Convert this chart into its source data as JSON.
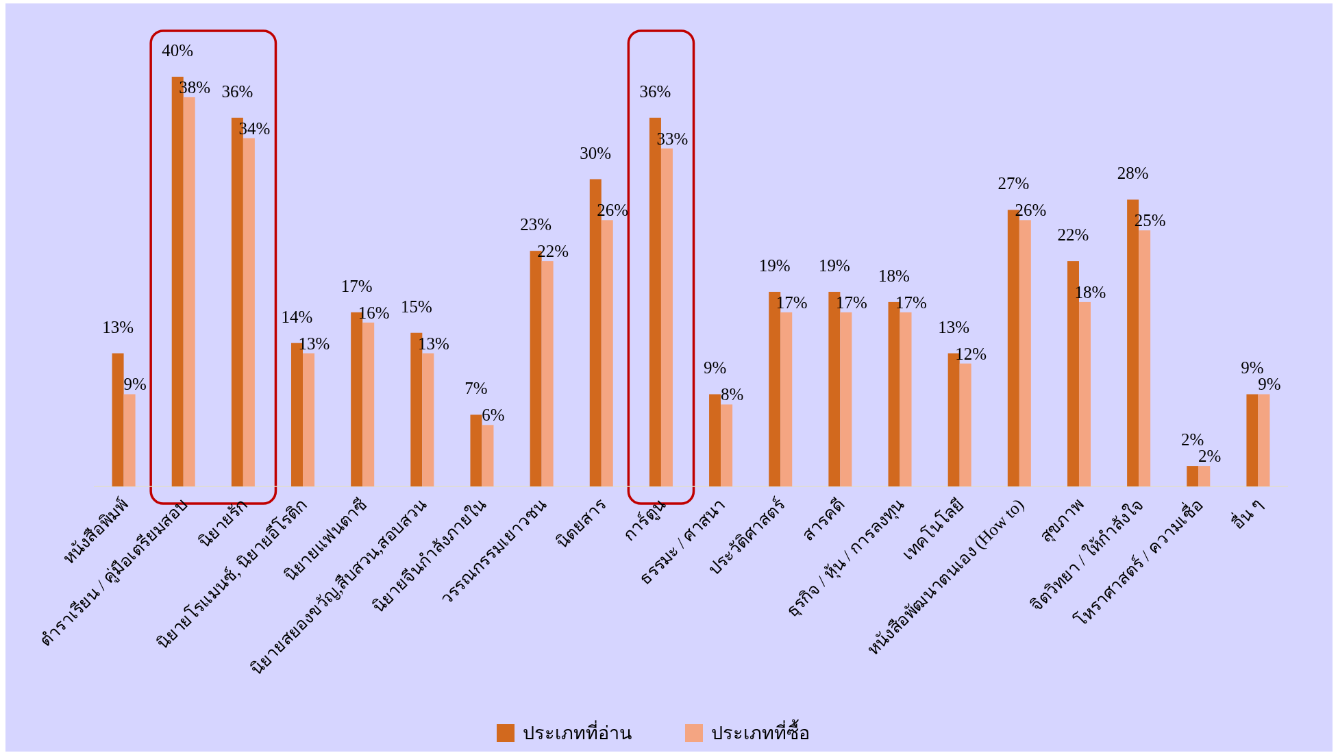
{
  "chart_data": {
    "type": "bar",
    "categories": [
      "หนังสือพิมพ์",
      "ตำราเรียน / คู่มือเตรียมสอบ",
      "นิยายรัก",
      "นิยายโรแมนซ์, นิยายอีโรติก",
      "นิยายแฟนตาซี",
      "นิยายสยองขวัญ,สืบสวน,สอบสวน",
      "นิยายจีนกำลังภายใน",
      "วรรณกรรมเยาวชน",
      "นิตยสาร",
      "การ์ตูน",
      "ธรรมะ / ศาสนา",
      "ประวัติศาสตร์",
      "สารคดี",
      "ธุรกิจ / หุ้น / การลงทุน",
      "เทคโนโลยี",
      "หนังสือพัฒนาตนเอง (How to)",
      "สุขภาพ",
      "จิตวิทยา / ให้กำลังใจ",
      "โหราศาสตร์ / ความเชื่อ",
      "อื่น ๆ"
    ],
    "series": [
      {
        "name": "ประเภทที่อ่าน",
        "color": "#d2691e",
        "values": [
          13,
          40,
          36,
          14,
          17,
          15,
          7,
          23,
          30,
          36,
          9,
          19,
          19,
          18,
          13,
          27,
          22,
          28,
          2,
          9
        ],
        "value_labels": [
          "13%",
          "40%",
          "36%",
          "14%",
          "17%",
          "15%",
          "7%",
          "23%",
          "30%",
          "36%",
          "9%",
          "19%",
          "19%",
          "18%",
          "13%",
          "27%",
          "22%",
          "28%",
          "2%",
          "9%"
        ]
      },
      {
        "name": "ประเภทที่ซื้อ",
        "color": "#f4a582",
        "values": [
          9,
          38,
          34,
          13,
          16,
          13,
          6,
          22,
          26,
          33,
          8,
          17,
          17,
          17,
          12,
          26,
          18,
          25,
          2,
          9
        ],
        "value_labels": [
          "9%",
          "38%",
          "34%",
          "13%",
          "16%",
          "13%",
          "6%",
          "22%",
          "26%",
          "33%",
          "8%",
          "17%",
          "17%",
          "17%",
          "12%",
          "26%",
          "18%",
          "25%",
          "2%",
          "9%"
        ]
      }
    ],
    "legend": "bottom"
  }
}
